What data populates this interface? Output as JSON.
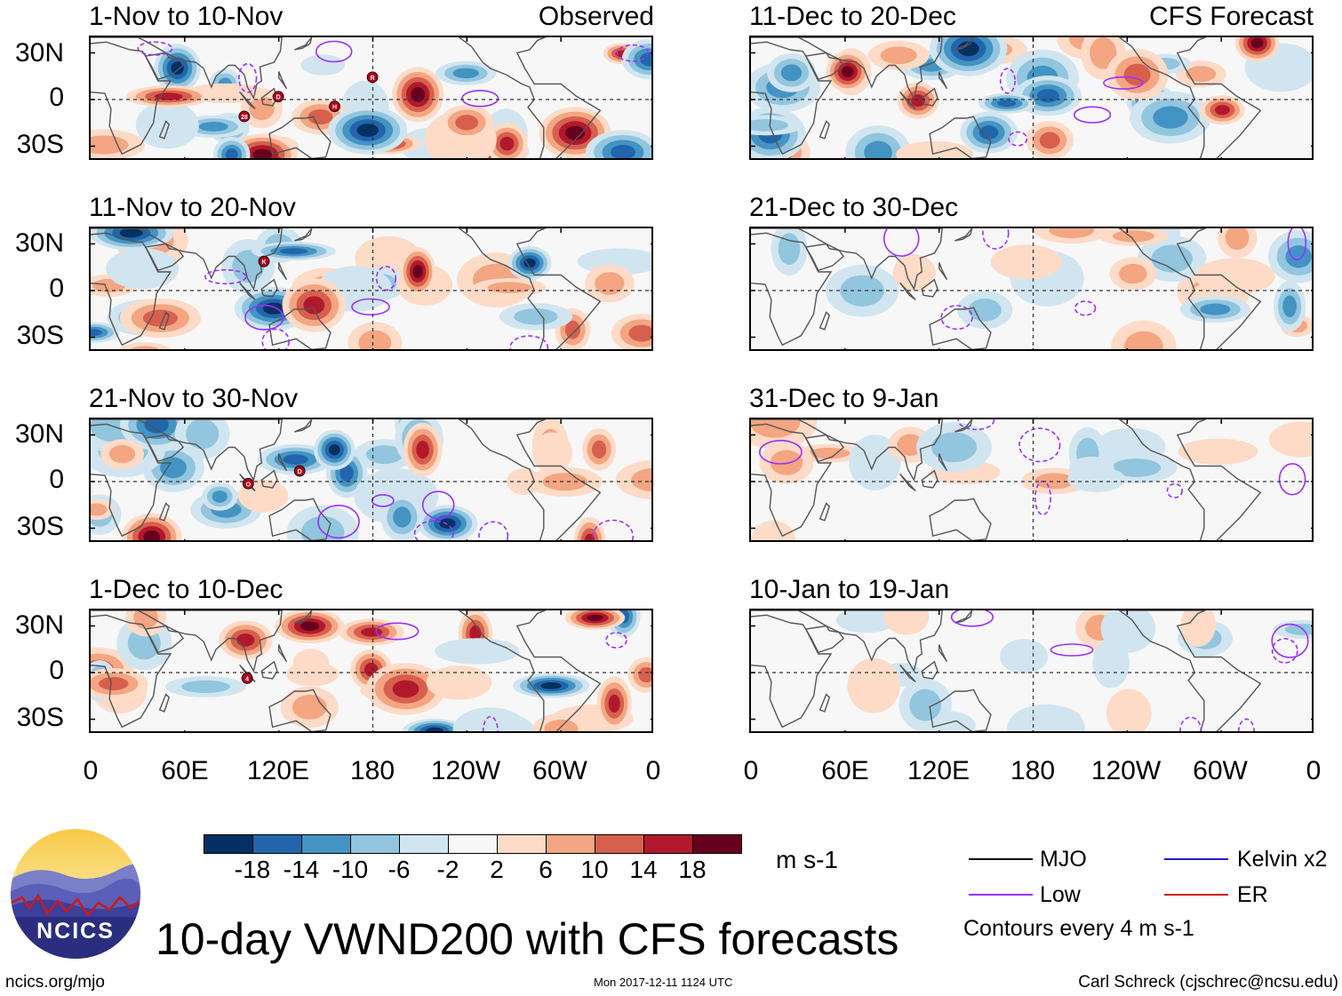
{
  "headers": {
    "observed": "Observed",
    "forecast": "CFS Forecast"
  },
  "observed_panels": [
    {
      "title": "1-Nov to 10-Nov",
      "storms": [
        "28",
        "D",
        "H",
        "R"
      ]
    },
    {
      "title": "11-Nov to 20-Nov",
      "storms": [
        "K"
      ]
    },
    {
      "title": "21-Nov to 30-Nov",
      "storms": [
        "O",
        "D"
      ]
    },
    {
      "title": "1-Dec to 10-Dec",
      "storms": [
        "4"
      ]
    }
  ],
  "forecast_panels": [
    {
      "title": "11-Dec to 20-Dec"
    },
    {
      "title": "21-Dec to 30-Dec"
    },
    {
      "title": "31-Dec to 9-Jan"
    },
    {
      "title": "10-Jan to 19-Jan"
    }
  ],
  "lat_labels": [
    "30N",
    "0",
    "30S"
  ],
  "lon_labels": [
    "0",
    "60E",
    "120E",
    "180",
    "120W",
    "60W",
    "0"
  ],
  "colorbar": {
    "colors": [
      "#053061",
      "#2166ac",
      "#4393c3",
      "#92c5de",
      "#d1e5f0",
      "#f7f7f7",
      "#fddbc7",
      "#f4a582",
      "#d6604d",
      "#b2182b",
      "#67001f"
    ],
    "ticks": [
      "-18",
      "-14",
      "-10",
      "-6",
      "-2",
      "2",
      "6",
      "10",
      "14",
      "18"
    ],
    "units": "m s-1"
  },
  "legend": {
    "mjo": "MJO",
    "kelvin": "Kelvin x2",
    "low": "Low",
    "er": "ER",
    "contours": "Contours every 4 m s-1",
    "colors": {
      "mjo": "#000000",
      "kelvin": "#2020c8",
      "low": "#9b30ff",
      "er": "#d01010"
    }
  },
  "logo_text": "NCICS",
  "main_title": "10-day VWND200 with CFS forecasts",
  "footer": {
    "url": "ncics.org/mjo",
    "timestamp": "Mon 2017-12-11 1124 UTC",
    "author": "Carl Schreck (cjschrec@ncsu.edu)"
  }
}
